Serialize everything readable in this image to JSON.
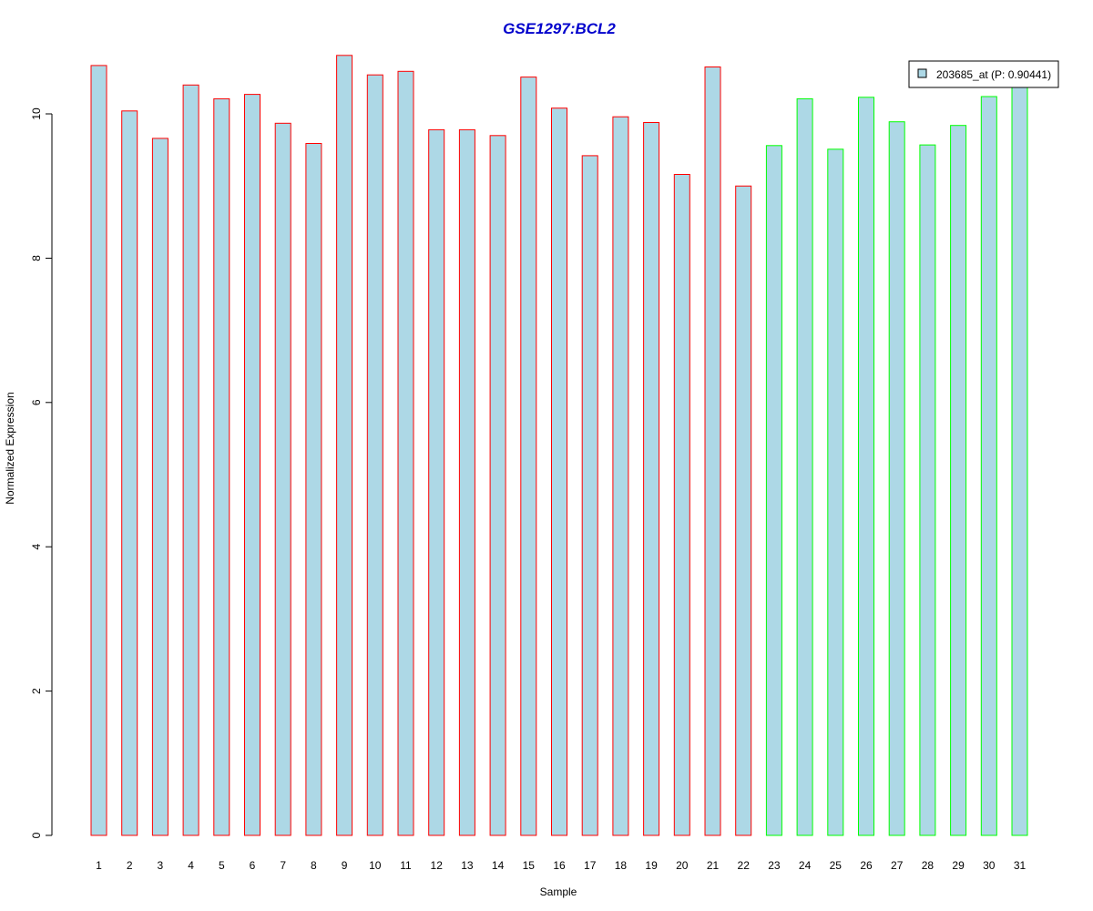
{
  "colors": {
    "title": "#0000cc",
    "bar_fill": "#add8e6",
    "group1_border": "#ff0000",
    "group2_border": "#00ff00",
    "axis": "#000000"
  },
  "chart_data": {
    "type": "bar",
    "title": "GSE1297:BCL2",
    "xlabel": "Sample",
    "ylabel": "Normalized Expression",
    "ylim": [
      0,
      10.8
    ],
    "yticks": [
      0,
      2,
      4,
      6,
      8,
      10
    ],
    "categories": [
      "1",
      "2",
      "3",
      "4",
      "5",
      "6",
      "7",
      "8",
      "9",
      "10",
      "11",
      "12",
      "13",
      "14",
      "15",
      "16",
      "17",
      "18",
      "19",
      "20",
      "21",
      "22",
      "23",
      "24",
      "25",
      "26",
      "27",
      "28",
      "29",
      "30",
      "31"
    ],
    "series": [
      {
        "name": "203685_at (P: 0.90441)",
        "values": [
          10.67,
          10.04,
          9.66,
          10.4,
          10.21,
          10.27,
          9.87,
          9.59,
          10.81,
          10.54,
          10.59,
          9.78,
          9.78,
          9.7,
          10.51,
          10.08,
          9.42,
          9.96,
          9.88,
          9.16,
          10.65,
          9.0,
          9.56,
          10.21,
          9.51,
          10.23,
          9.89,
          9.57,
          9.84,
          10.24,
          10.4
        ],
        "group": [
          1,
          1,
          1,
          1,
          1,
          1,
          1,
          1,
          1,
          1,
          1,
          1,
          1,
          1,
          1,
          1,
          1,
          1,
          1,
          1,
          1,
          1,
          2,
          2,
          2,
          2,
          2,
          2,
          2,
          2,
          2
        ]
      }
    ],
    "legend": {
      "placement": "top-right",
      "label": "203685_at (P: 0.90441)"
    },
    "grid": false
  }
}
